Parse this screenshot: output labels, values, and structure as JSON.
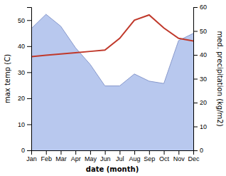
{
  "chart_data": {
    "type": "line",
    "xlabel": "date (month)",
    "ylabel": "max temp (C)",
    "y2label": "med. precipitation (kg/m2)",
    "categories": [
      "Jan",
      "Feb",
      "Mar",
      "Apr",
      "May",
      "Jun",
      "Jul",
      "Aug",
      "Sep",
      "Oct",
      "Nov",
      "Dec"
    ],
    "series": [
      {
        "type": "area",
        "axis": "y2",
        "color": "#b8c8ee",
        "values": [
          51,
          57,
          52,
          43,
          36,
          27,
          27,
          32,
          29,
          28,
          46,
          49
        ]
      },
      {
        "type": "line",
        "axis": "y2",
        "color": "#8899cc",
        "values": [
          51,
          57,
          52,
          43,
          36,
          27,
          27,
          32,
          29,
          28,
          46,
          49
        ]
      },
      {
        "type": "line",
        "color": "#c0392b",
        "values": [
          36,
          36.5,
          37,
          37.5,
          38,
          38.5,
          43,
          50,
          52,
          47,
          43,
          42
        ]
      }
    ],
    "ylim": [
      0,
      55
    ],
    "yticks": [
      0,
      10,
      20,
      30,
      40,
      50
    ],
    "y2lim": [
      0,
      60
    ],
    "y2ticks": [
      0,
      10,
      20,
      30,
      40,
      50,
      60
    ],
    "grid": false
  }
}
